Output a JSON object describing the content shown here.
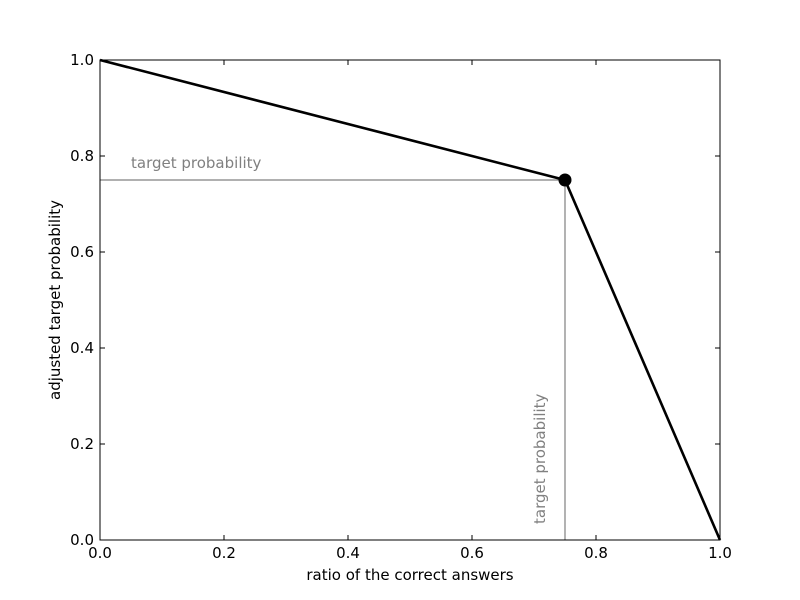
{
  "chart_data": {
    "type": "line",
    "title": "",
    "xlabel": "ratio of the correct answers",
    "ylabel": "adjusted target probability",
    "xlim": [
      0.0,
      1.0
    ],
    "ylim": [
      0.0,
      1.0
    ],
    "grid": false,
    "x_ticks": [
      "0.0",
      "0.2",
      "0.4",
      "0.6",
      "0.8",
      "1.0"
    ],
    "y_ticks": [
      "0.0",
      "0.2",
      "0.4",
      "0.6",
      "0.8",
      "1.0"
    ],
    "series": [
      {
        "x": [
          0.0,
          0.75,
          1.0
        ],
        "y": [
          1.0,
          0.75,
          0.0
        ],
        "color": "#000000"
      }
    ],
    "marker_point": {
      "x": 0.75,
      "y": 0.75,
      "color": "#000000"
    },
    "reference_lines": {
      "target": 0.75,
      "color": "#808080"
    },
    "annotations": {
      "horizontal_label": "target probability",
      "vertical_label": "target probability",
      "color": "#808080"
    }
  }
}
